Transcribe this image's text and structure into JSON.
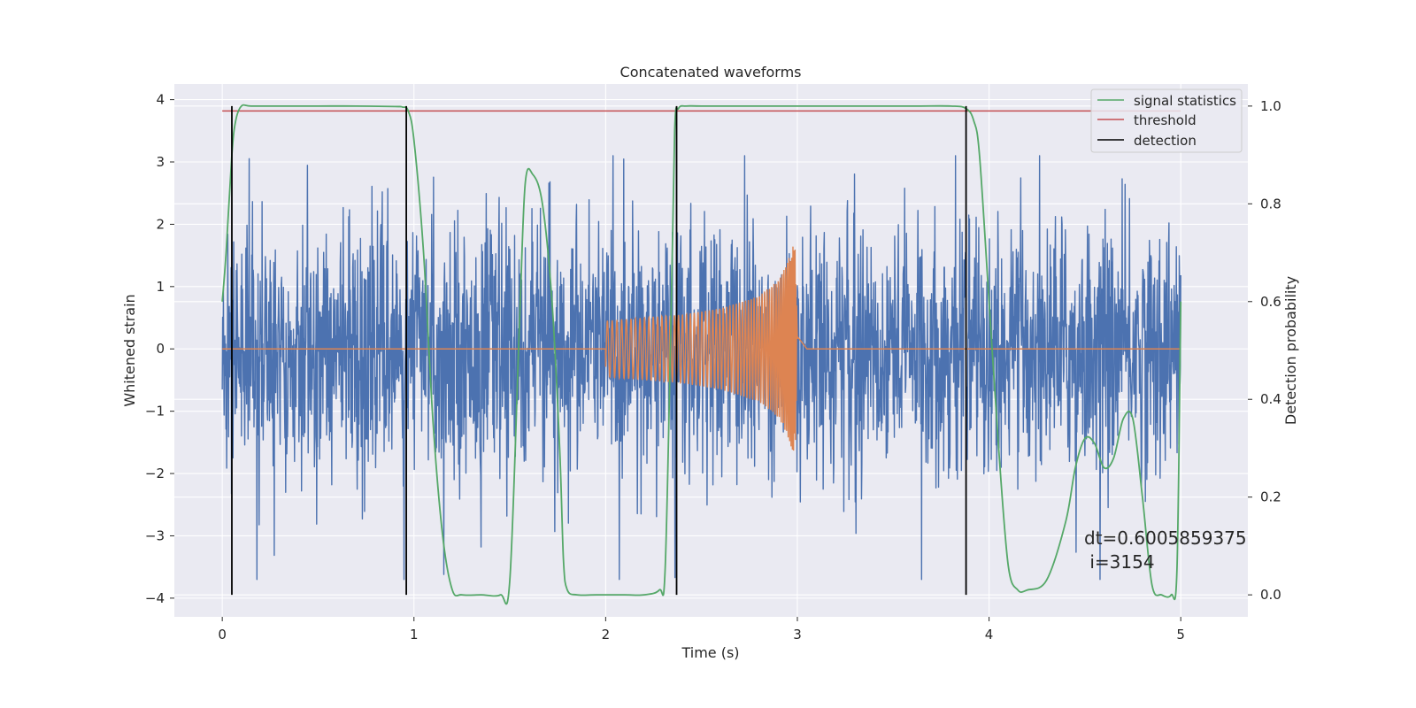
{
  "chart_data": {
    "type": "line",
    "title": "Concatenated waveforms",
    "xlabel": "Time (s)",
    "ylabel": "Whitened strain",
    "y2label": "Detection probability",
    "xlim": [
      -0.25,
      5.35
    ],
    "ylim": [
      -4.3,
      4.25
    ],
    "y2lim": [
      -0.045,
      1.045
    ],
    "x_ticks": [
      0,
      1,
      2,
      3,
      4,
      5
    ],
    "y_ticks": [
      -4,
      -3,
      -2,
      -1,
      0,
      1,
      2,
      3,
      4
    ],
    "y2_ticks": [
      0.0,
      0.2,
      0.4,
      0.6,
      0.8,
      1.0
    ],
    "x_tick_labels": [
      "0",
      "1",
      "2",
      "3",
      "4",
      "5"
    ],
    "y_tick_labels": [
      "−4",
      "−3",
      "−2",
      "−1",
      "0",
      "1",
      "2",
      "3",
      "4"
    ],
    "y2_tick_labels": [
      "0.0",
      "0.2",
      "0.4",
      "0.6",
      "0.8",
      "1.0"
    ],
    "grid": true,
    "legend_position": "top-right",
    "colors": {
      "noise": "#4c72b0",
      "signal": "#dd8452",
      "statistics": "#55a868",
      "threshold": "#c44e52",
      "detection": "#000000",
      "background": "#eaeaf2",
      "grid": "#ffffff"
    },
    "series": [
      {
        "name": "",
        "role": "noise",
        "axis": "left",
        "x_start": 0,
        "x_end": 5,
        "typical_amplitude": 1.2,
        "peak_range": [
          -3.7,
          3.1
        ]
      },
      {
        "name": "",
        "role": "signal",
        "axis": "left",
        "kind": "chirp",
        "x": [
          0,
          2,
          2.2,
          2.4,
          2.6,
          2.8,
          2.9,
          2.95,
          2.97,
          2.99,
          3.0,
          3.05,
          5
        ],
        "envelope": [
          0,
          0.45,
          0.5,
          0.55,
          0.65,
          0.85,
          1.1,
          1.4,
          1.6,
          1.8,
          0.2,
          0,
          0
        ]
      },
      {
        "name": "signal statistics",
        "role": "statistics",
        "axis": "right",
        "x": [
          0,
          0.02,
          0.05,
          0.07,
          0.1,
          0.15,
          0.3,
          0.5,
          0.7,
          0.9,
          0.94,
          0.97,
          1.0,
          1.05,
          1.1,
          1.15,
          1.2,
          1.25,
          1.35,
          1.45,
          1.5,
          1.55,
          1.58,
          1.62,
          1.67,
          1.72,
          1.76,
          1.78,
          1.8,
          1.85,
          1.95,
          2.1,
          2.2,
          2.28,
          2.31,
          2.34,
          2.36,
          2.38,
          2.42,
          2.5,
          2.8,
          3.2,
          3.6,
          3.8,
          3.88,
          3.92,
          3.95,
          4.0,
          4.05,
          4.1,
          4.15,
          4.2,
          4.3,
          4.4,
          4.45,
          4.5,
          4.55,
          4.6,
          4.65,
          4.7,
          4.75,
          4.8,
          4.85,
          4.9,
          4.95,
          4.98,
          5.0
        ],
        "y": [
          0.6,
          0.7,
          0.9,
          0.97,
          1.0,
          1.0,
          1.0,
          1.0,
          1.0,
          0.999,
          0.998,
          0.99,
          0.93,
          0.7,
          0.35,
          0.12,
          0.01,
          0.0,
          0.0,
          0.0,
          0.03,
          0.55,
          0.84,
          0.86,
          0.8,
          0.6,
          0.3,
          0.07,
          0.01,
          0.0,
          0.0,
          0.0,
          0.0,
          0.01,
          0.05,
          0.55,
          0.95,
          0.995,
          1.0,
          1.0,
          1.0,
          1.0,
          1.0,
          1.0,
          0.995,
          0.97,
          0.9,
          0.6,
          0.3,
          0.06,
          0.01,
          0.01,
          0.03,
          0.15,
          0.26,
          0.32,
          0.31,
          0.26,
          0.28,
          0.36,
          0.36,
          0.2,
          0.02,
          0.0,
          0.0,
          0.05,
          0.6
        ]
      },
      {
        "name": "threshold",
        "role": "threshold",
        "axis": "right",
        "x": [
          0,
          5
        ],
        "y": [
          0.99,
          0.99
        ]
      },
      {
        "name": "detection",
        "role": "detection",
        "axis": "right",
        "vlines": [
          0.05,
          0.96,
          2.37,
          3.88
        ],
        "ymin": 0,
        "ymax": 1.0
      }
    ],
    "legend": [
      "signal statistics",
      "threshold",
      "detection"
    ],
    "annotations": {
      "dt": "dt=0.6005859375",
      "i": " i=3154"
    }
  }
}
